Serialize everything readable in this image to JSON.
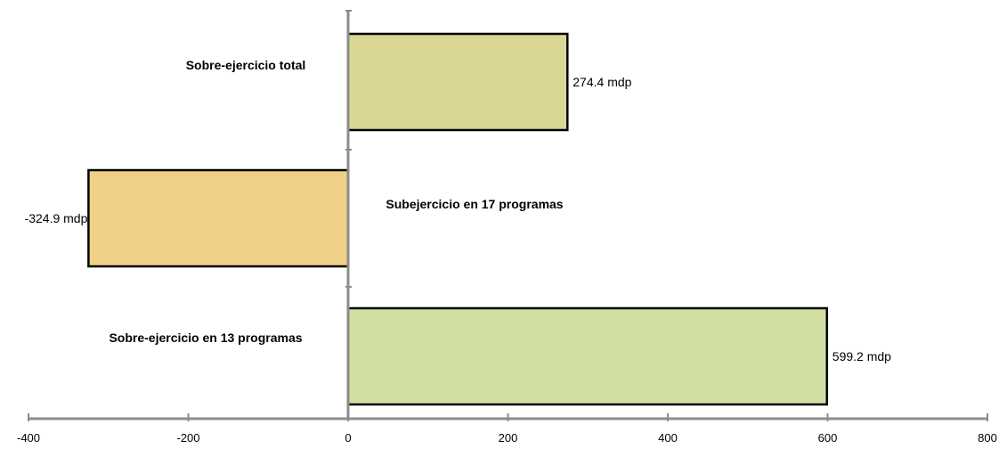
{
  "chart_data": {
    "type": "bar",
    "orientation": "horizontal",
    "categories": [
      "Sobre-ejercicio total",
      "Subejercicio en  17 programas",
      "Sobre-ejercicio en  13 programas"
    ],
    "values": [
      274.4,
      -324.9,
      599.2
    ],
    "data_labels": [
      "274.4 mdp",
      "-324.9 mdp",
      "599.2 mdp"
    ],
    "bar_colors": [
      "#d9d793",
      "#f0cf87",
      "#d1dfa3"
    ],
    "bar_border_color": "#000000",
    "axis_color": "#8c8c8c",
    "xlim": [
      -400,
      800
    ],
    "xticks": [
      -400,
      -200,
      0,
      200,
      400,
      600,
      800
    ],
    "tick_labels": [
      "-400",
      "-200",
      "0",
      "200",
      "400",
      "600",
      "800"
    ],
    "grid": false,
    "title": "",
    "xlabel": "",
    "ylabel": ""
  }
}
